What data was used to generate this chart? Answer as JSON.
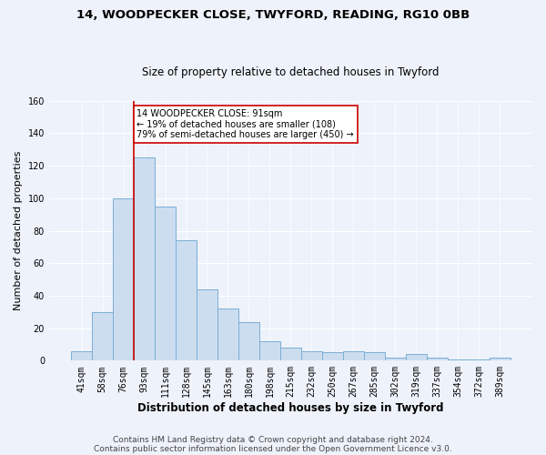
{
  "title1": "14, WOODPECKER CLOSE, TWYFORD, READING, RG10 0BB",
  "title2": "Size of property relative to detached houses in Twyford",
  "xlabel": "Distribution of detached houses by size in Twyford",
  "ylabel": "Number of detached properties",
  "categories": [
    "41sqm",
    "58sqm",
    "76sqm",
    "93sqm",
    "111sqm",
    "128sqm",
    "145sqm",
    "163sqm",
    "180sqm",
    "198sqm",
    "215sqm",
    "232sqm",
    "250sqm",
    "267sqm",
    "285sqm",
    "302sqm",
    "319sqm",
    "337sqm",
    "354sqm",
    "372sqm",
    "389sqm"
  ],
  "values": [
    6,
    30,
    100,
    125,
    95,
    74,
    44,
    32,
    24,
    12,
    8,
    6,
    5,
    6,
    5,
    2,
    4,
    2,
    1,
    1,
    2
  ],
  "bar_color": "#ccddf0",
  "bar_edge_color": "#7aaed4",
  "vline_color": "#cc0000",
  "annotation_box_edge": "#cc0000",
  "annotation_line1": "14 WOODPECKER CLOSE: 91sqm",
  "annotation_line2": "← 19% of detached houses are smaller (108)",
  "annotation_line3": "79% of semi-detached houses are larger (450) →",
  "ylim": [
    0,
    160
  ],
  "yticks": [
    0,
    20,
    40,
    60,
    80,
    100,
    120,
    140,
    160
  ],
  "footer1": "Contains HM Land Registry data © Crown copyright and database right 2024.",
  "footer2": "Contains public sector information licensed under the Open Government Licence v3.0.",
  "background_color": "#eef2fa",
  "plot_background": "#eef2fa",
  "grid_color": "#ffffff",
  "title1_fontsize": 9.5,
  "title2_fontsize": 8.5,
  "xlabel_fontsize": 8.5,
  "ylabel_fontsize": 8,
  "tick_fontsize": 7,
  "footer_fontsize": 6.5
}
